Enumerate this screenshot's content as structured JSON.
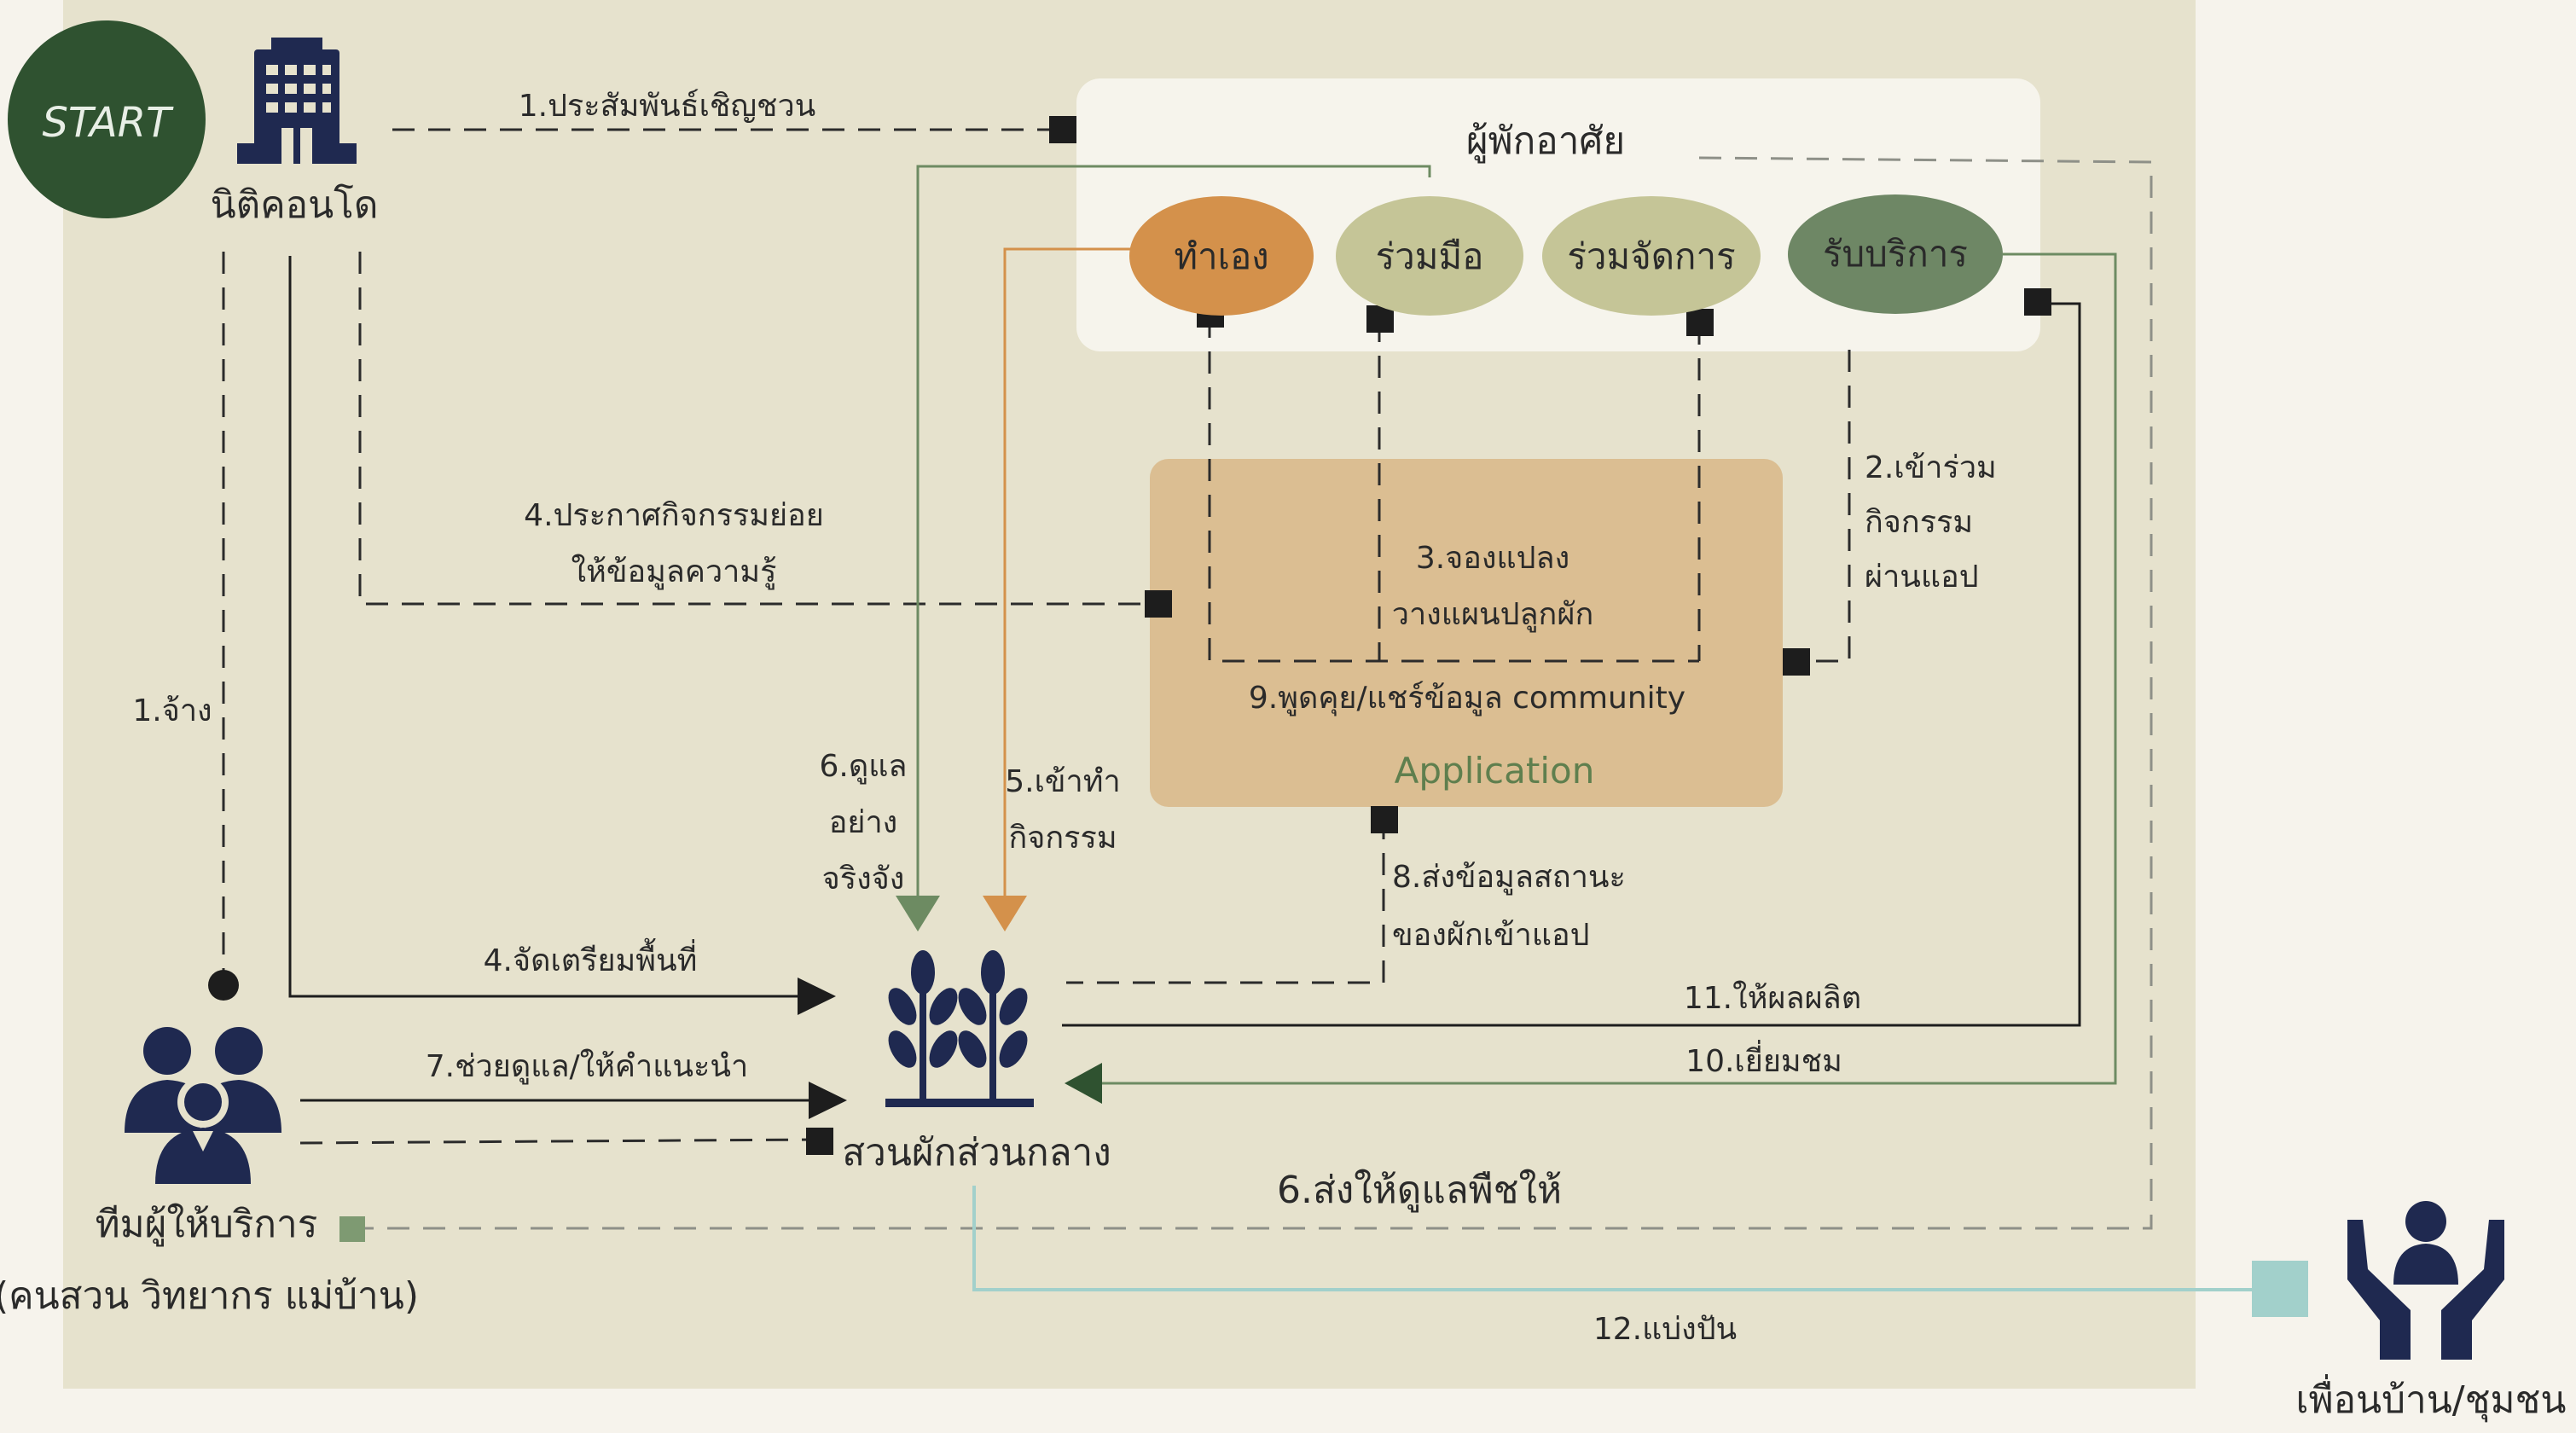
{
  "start": "START",
  "nodes": {
    "condo": "นิติคอนโด",
    "residents": "ผู้พักอาศัย",
    "self": "ทำเอง",
    "cooperate": "ร่วมมือ",
    "co_manage": "ร่วมจัดการ",
    "service": "รับบริการ",
    "app": "Application",
    "garden": "สวนผักส่วนกลาง",
    "team": "ทีมผู้ให้บริการ",
    "team_sub": "(คนสวน วิทยากร แม่บ้าน)",
    "neighbors": "เพื่อนบ้าน/ชุมชน"
  },
  "edges": {
    "invite": "1.ประสัมพันธ์เชิญชวน",
    "hire": "1.จ้าง",
    "join_1": "2.เข้าร่วม",
    "join_2": "กิจกรรม",
    "join_3": "ผ่านแอป",
    "book_1": "3.จองแปลง",
    "book_2": "วางแผนปลูกผัก",
    "announce_1": "4.ประกาศกิจกรรมย่อย",
    "announce_2": "ให้ข้อมูลความรู้",
    "prepare": "4.จัดเตรียมพื้นที่",
    "activity_1": "5.เข้าทำ",
    "activity_2": "กิจกรรม",
    "care_1": "6.ดูแล",
    "care_2": "อย่าง",
    "care_3": "จริงจัง",
    "delegate": "6.ส่งให้ดูแลพืชให้",
    "help": "7.ช่วยดูแล/ให้คำแนะนำ",
    "status_1": "8.ส่งข้อมูลสถานะ",
    "status_2": "ของผักเข้าแอป",
    "community": "9.พูดคุย/แชร์ข้อมูล community",
    "visit": "10.เยี่ยมชม",
    "yield": "11.ให้ผลผลิต",
    "share": "12.แบ่งปัน"
  },
  "colors": {
    "panel": "#e6e2cd",
    "dark_green": "#2f5230",
    "navy": "#1f2950",
    "orange": "#d4914b",
    "khaki": "#c5c597",
    "sage": "#6e8765",
    "app_box": "#dbbe92",
    "teal": "#a2d0cb",
    "green_line": "#6d8b62",
    "app_text": "#5f7f4e"
  }
}
